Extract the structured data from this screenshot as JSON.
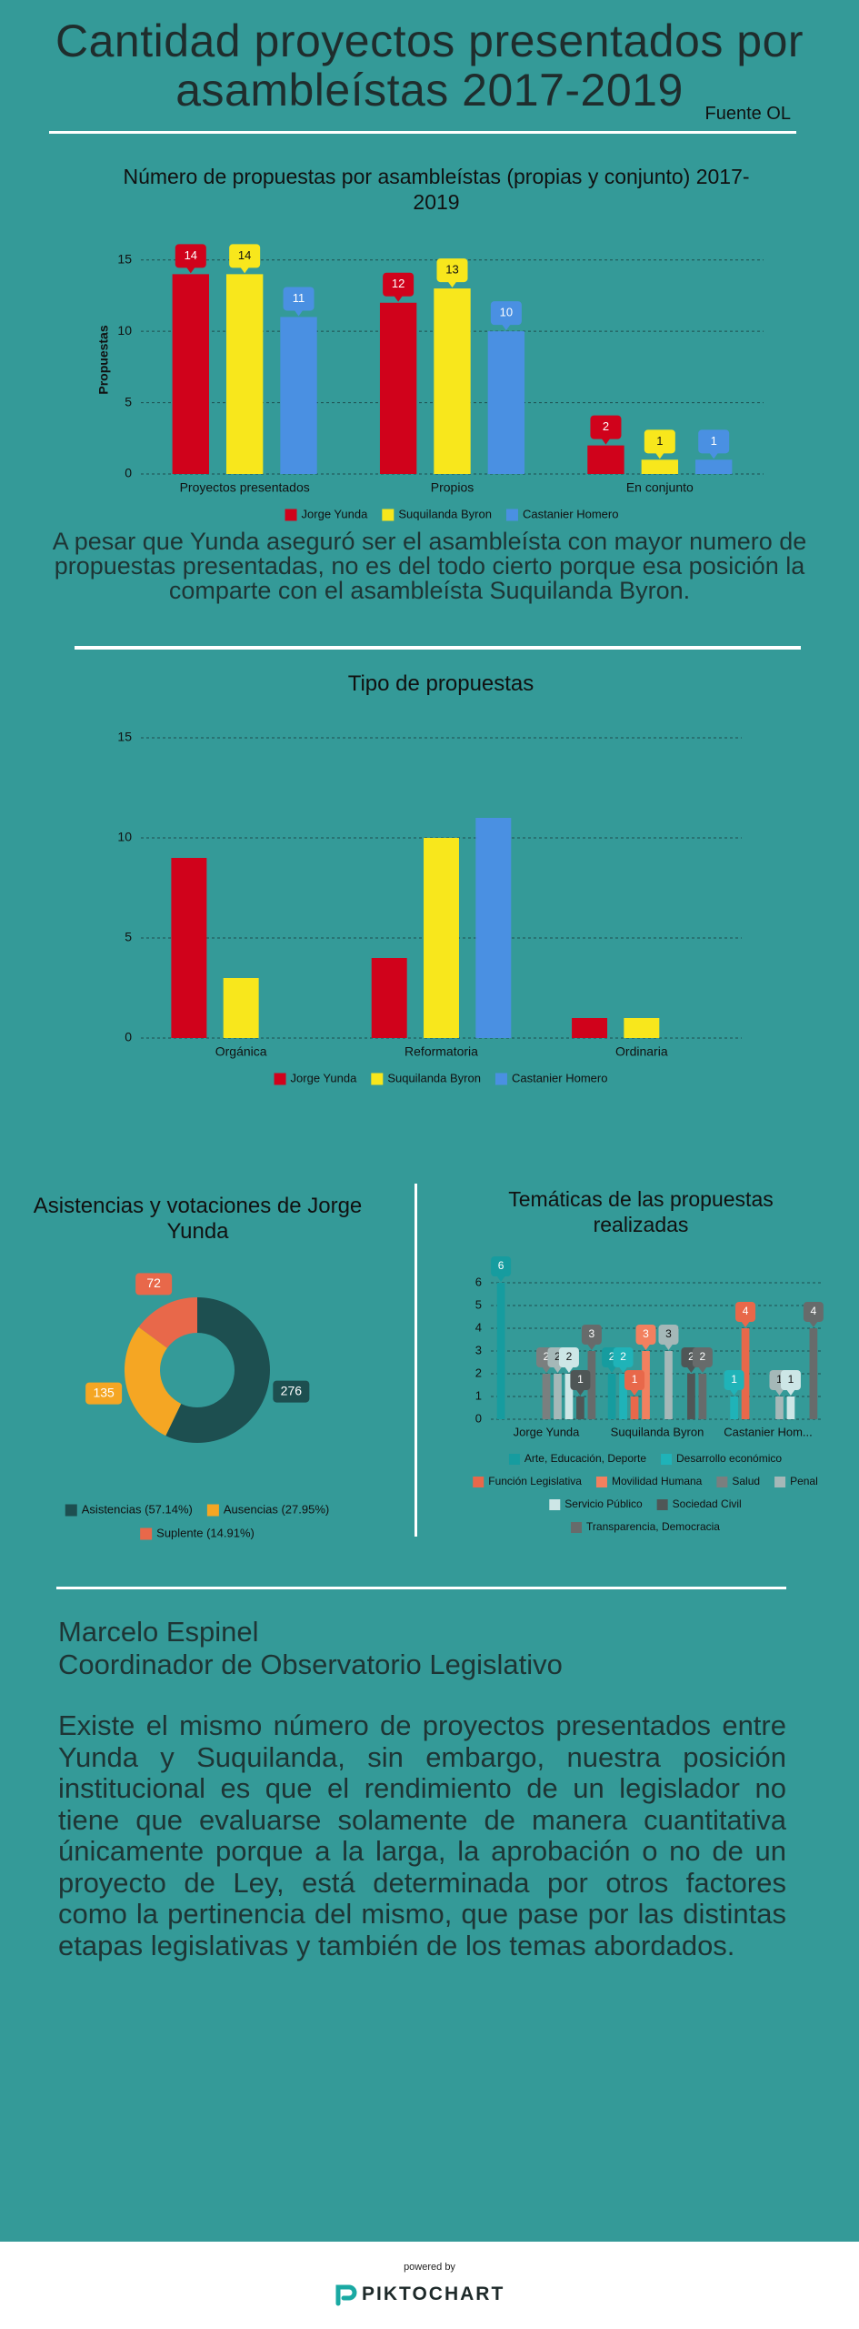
{
  "header": {
    "title": "Cantidad proyectos presentados por asambleístas 2017-2019",
    "source": "Fuente OL"
  },
  "chart_data": [
    {
      "type": "bar",
      "title": "Número de propuestas por asambleístas (propias y conjunto) 2017-2019",
      "y_label": "Propuestas",
      "categories": [
        "Proyectos presentados",
        "Propios",
        "En conjunto"
      ],
      "series": [
        {
          "name": "Jorge Yunda",
          "color": "#d0021b",
          "values": [
            14,
            12,
            2
          ]
        },
        {
          "name": "Suquilanda Byron",
          "color": "#f8e71c",
          "values": [
            14,
            13,
            1
          ]
        },
        {
          "name": "Castanier Homero",
          "color": "#4a90e2",
          "values": [
            11,
            10,
            1
          ]
        }
      ],
      "ylim": [
        0,
        16
      ],
      "yticks": [
        0,
        5,
        10,
        15
      ],
      "grid": true,
      "data_labels": true
    },
    {
      "type": "bar",
      "title": "Tipo de propuestas",
      "categories": [
        "Orgánica",
        "Reformatoria",
        "Ordinaria"
      ],
      "series": [
        {
          "name": "Jorge Yunda",
          "color": "#d0021b",
          "values": [
            9,
            4,
            1
          ]
        },
        {
          "name": "Suquilanda Byron",
          "color": "#f8e71c",
          "values": [
            3,
            10,
            1
          ]
        },
        {
          "name": "Castanier Homero",
          "color": "#4a90e2",
          "values": [
            0,
            11,
            0
          ]
        }
      ],
      "ylim": [
        0,
        15
      ],
      "yticks": [
        0,
        5,
        10,
        15
      ],
      "grid": true,
      "data_labels": false
    },
    {
      "type": "donut",
      "title": "Asistencias y votaciones de Jorge Yunda",
      "labels": [
        "Asistencias (57.14%)",
        "Ausencias (27.95%)",
        "Suplente (14.91%)"
      ],
      "values": [
        276,
        135,
        72
      ],
      "colors": [
        "#1d4f50",
        "#f5a623",
        "#e8684a"
      ],
      "data_labels": true
    },
    {
      "type": "bar",
      "title": "Temáticas de las propuestas realizadas",
      "categories": [
        "Jorge Yunda",
        "Suquilanda Byron",
        "Castanier Hom..."
      ],
      "series": [
        {
          "name": "Arte, Educación, Deporte",
          "color": "#169c9f",
          "values": [
            6,
            2,
            0
          ]
        },
        {
          "name": "Desarrollo económico",
          "color": "#1fb3b8",
          "values": [
            0,
            2,
            1
          ]
        },
        {
          "name": "Función Legislativa",
          "color": "#e8684a",
          "values": [
            0,
            1,
            4
          ]
        },
        {
          "name": "Movilidad Humana",
          "color": "#f2805f",
          "values": [
            0,
            3,
            0
          ]
        },
        {
          "name": "Salud",
          "color": "#7a7f7f",
          "values": [
            2,
            0,
            0
          ]
        },
        {
          "name": "Penal",
          "color": "#a5b8b8",
          "values": [
            2,
            3,
            1
          ]
        },
        {
          "name": "Servicio Público",
          "color": "#cde6e6",
          "values": [
            2,
            0,
            1
          ]
        },
        {
          "name": "Sociedad Civil",
          "color": "#4f5656",
          "values": [
            1,
            2,
            0
          ]
        },
        {
          "name": "Transparencia, Democracia",
          "color": "#676b6b",
          "values": [
            3,
            2,
            4
          ]
        }
      ],
      "ylim": [
        0,
        6
      ],
      "yticks": [
        0,
        1,
        2,
        3,
        4,
        5,
        6
      ],
      "grid": true,
      "data_labels": true
    }
  ],
  "commentary": "A pesar que Yunda aseguró ser el asambleísta con mayor numero de propuestas presentadas, no es del todo cierto porque esa posición la comparte con el asambleísta Suquilanda Byron.",
  "author": {
    "name": "Marcelo Espinel",
    "role": "Coordinador de Observatorio Legislativo"
  },
  "conclusion": "Existe el mismo número de proyectos presentados entre Yunda y Suquilanda, sin embargo, nuestra posición institucional es que el rendimiento de un legislador no tiene que evaluarse solamente de manera cuantitativa únicamente porque a la larga, la aprobación o no de un proyecto de Ley, está determinada por otros factores como la pertinencia del mismo, que pase por las distintas etapas legislativas y también de los temas abordados.",
  "footer": {
    "powered_by": "powered by",
    "brand": "PIKTOCHART"
  }
}
